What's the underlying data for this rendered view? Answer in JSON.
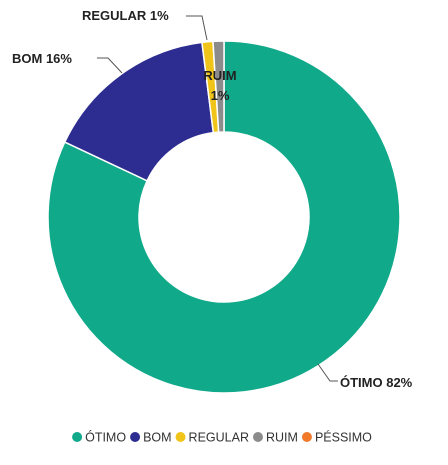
{
  "chart_data": {
    "type": "pie",
    "donut": true,
    "categories": [
      "ÓTIMO",
      "BOM",
      "REGULAR",
      "RUIM",
      "PÉSSIMO"
    ],
    "values": [
      82,
      16,
      1,
      1,
      0
    ],
    "colors": [
      "#10a98a",
      "#2d2d91",
      "#f0c419",
      "#8c8c8c",
      "#f07a2a"
    ],
    "data_labels": [
      "ÓTIMO 82%",
      "BOM 16%",
      "REGULAR 1%",
      "RUIM 1%",
      ""
    ],
    "title": "",
    "legend_position": "bottom"
  }
}
